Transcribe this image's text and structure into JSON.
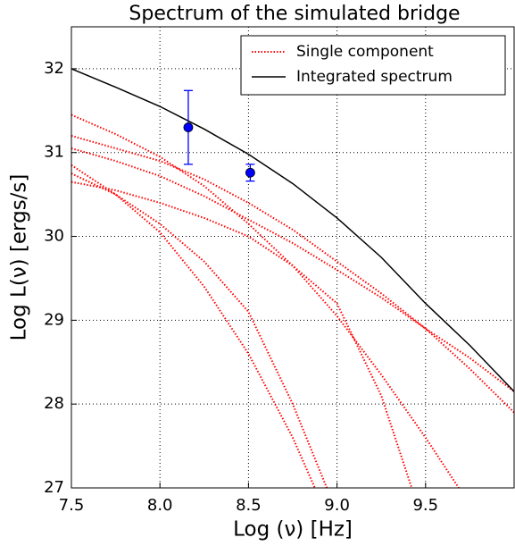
{
  "chart_data": {
    "type": "line",
    "title": "Spectrum of the simulated bridge",
    "x_label": "Log (ν) [Hz]",
    "y_label": "Log L(ν) [ergs/s]",
    "xlim": [
      7.5,
      10.0
    ],
    "ylim": [
      27,
      32.5
    ],
    "xticks": [
      7.5,
      {
        "value": 8,
        "label": "8.0"
      },
      8.5,
      {
        "value": 9,
        "label": "9.0"
      },
      9.5
    ],
    "yticks": [
      27,
      28,
      29,
      30,
      31,
      32
    ],
    "grid": true,
    "legend": "upper right",
    "x": [
      7.5,
      7.75,
      8.0,
      8.25,
      8.5,
      8.75,
      9.0,
      9.25,
      9.5,
      9.75,
      10.0
    ],
    "components": {
      "name": "Single component",
      "color": "#ff0000",
      "curves": [
        [
          31.45,
          31.22,
          30.95,
          30.6,
          30.15,
          29.65,
          29.05,
          28.35,
          27.6,
          26.8,
          null
        ],
        [
          31.2,
          31.05,
          30.9,
          30.68,
          30.4,
          30.08,
          29.7,
          29.32,
          28.9,
          28.42,
          27.9
        ],
        [
          31.05,
          30.9,
          30.72,
          30.48,
          30.2,
          29.92,
          29.6,
          29.27,
          28.9,
          28.55,
          28.15
        ],
        [
          30.85,
          30.5,
          30.05,
          29.4,
          28.6,
          27.6,
          26.4,
          null,
          null,
          null,
          null
        ],
        [
          30.75,
          30.5,
          30.15,
          29.7,
          29.1,
          28.0,
          26.7,
          null,
          null,
          null,
          null
        ],
        [
          30.65,
          30.55,
          30.4,
          30.22,
          30.0,
          29.65,
          29.2,
          28.1,
          26.5,
          null,
          null
        ]
      ]
    },
    "series": [
      {
        "name": "Integrated spectrum",
        "color": "#000000",
        "values": [
          32.0,
          31.78,
          31.55,
          31.28,
          30.98,
          30.63,
          30.22,
          29.75,
          29.2,
          28.7,
          28.15
        ]
      }
    ],
    "points": {
      "color": "#0000ff",
      "x": [
        8.16,
        8.51
      ],
      "values": [
        31.3,
        30.76
      ],
      "errors": [
        0.44,
        0.1
      ]
    }
  }
}
